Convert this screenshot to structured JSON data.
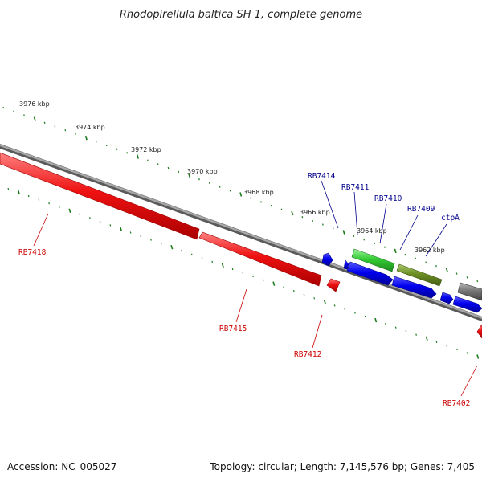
{
  "title": "Rhodopirellula baltica SH 1, complete genome",
  "footer": {
    "accession": "Accession: NC_005027",
    "summary": "Topology: circular; Length: 7,145,576 bp; Genes: 7,405"
  },
  "colors": {
    "backbone": "#808080",
    "forward_gene": "#0000ee",
    "reverse_gene": "#ee0000",
    "rna_green": "#33cc33",
    "rna_olive": "#6b8e23",
    "grey_gene": "#777777",
    "ticks": "#1a7a1a",
    "forward_label": "#00008b",
    "reverse_label": "#cc0000"
  },
  "scale_labels": [
    "3976 kbp",
    "3974 kbp",
    "3972 kbp",
    "3970 kbp",
    "3968 kbp",
    "3966 kbp",
    "3964 kbp",
    "3962 kbp"
  ],
  "forward_labels": [
    "RB7414",
    "RB7411",
    "RB7410",
    "RB7409",
    "ctpA"
  ],
  "reverse_labels": [
    "RB7418",
    "RB7415",
    "RB7412",
    "RB7402"
  ]
}
